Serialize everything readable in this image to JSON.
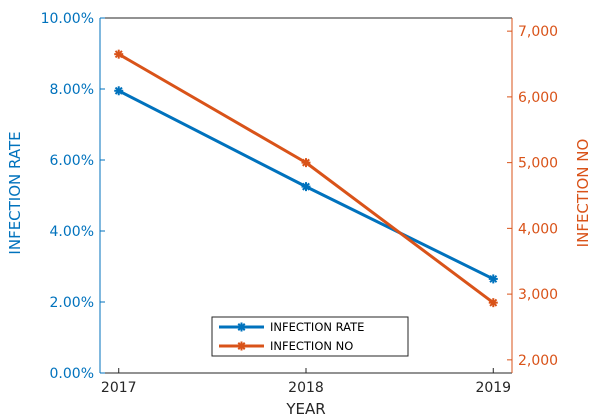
{
  "chart_data": {
    "type": "line",
    "dual_axis": true,
    "x": [
      2017,
      2018,
      2019
    ],
    "x_tick_labels": [
      "2017",
      "2018",
      "2019"
    ],
    "xlabel": "YEAR",
    "xlim": [
      2016.9,
      2019.1
    ],
    "y_left": {
      "label": "INFECTION  RATE",
      "lim": [
        0,
        10
      ],
      "unit": "%",
      "ticks": [
        0,
        2,
        4,
        6,
        8,
        10
      ],
      "tick_labels": [
        "0.00%",
        "2.00%",
        "4.00%",
        "6.00%",
        "8.00%",
        "10.00%"
      ],
      "color": "#0072BD"
    },
    "y_right": {
      "label": "INFECTION  NO",
      "lim": [
        1800,
        7200
      ],
      "ticks": [
        2000,
        3000,
        4000,
        5000,
        6000,
        7000
      ],
      "tick_labels": [
        "2,000",
        "3,000",
        "4,000",
        "5,000",
        "6,000",
        "7,000"
      ],
      "color": "#D95319"
    },
    "series": [
      {
        "name": "INFECTION  RATE",
        "axis": "left",
        "values": [
          7.95,
          5.25,
          2.65
        ],
        "color": "#0072BD",
        "marker": "asterisk"
      },
      {
        "name": "INFECTION  NO",
        "axis": "right",
        "values": [
          6650,
          5000,
          2870
        ],
        "color": "#D95319",
        "marker": "asterisk"
      }
    ],
    "legend": {
      "placement": "bottom-center",
      "entries": [
        "INFECTION  RATE",
        "INFECTION  NO"
      ]
    },
    "grid": false
  }
}
